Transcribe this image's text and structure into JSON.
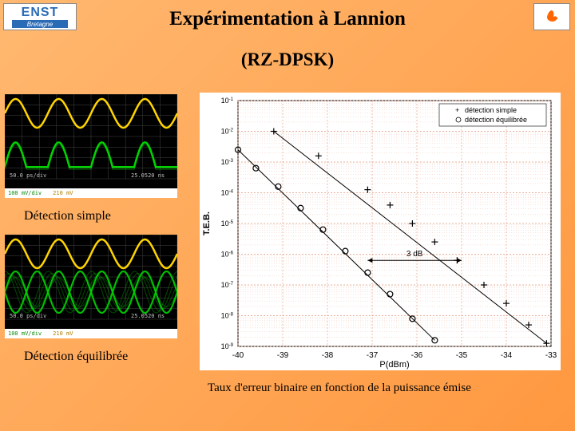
{
  "logos": {
    "left_line1": "ENST",
    "left_line2": "Bretagne",
    "right_symbol_color": "#ff6600"
  },
  "title": "Expérimentation à Lannion",
  "subtitle": "(RZ-DPSK)",
  "scope1": {
    "caption": "Détection simple",
    "timebase": "50.0 ps/div",
    "timestamp": "25.0520 ns",
    "ch2_scale": "100 mV/div",
    "ch2_offset": "210 mV",
    "traces": {
      "yellow": {
        "color": "#ffd400",
        "periods": 4,
        "amplitude": 18,
        "offset": 24,
        "type": "sine"
      },
      "green": {
        "color": "#00d400",
        "periods": 4,
        "amplitude": 22,
        "offset": 78,
        "type": "eye_single"
      }
    }
  },
  "scope2": {
    "caption": "Détection équilibrée",
    "timebase": "50.0 ps/div",
    "timestamp": "25.0520 ns",
    "ch2_scale": "100 mV/div",
    "ch2_offset": "210 mV",
    "traces": {
      "yellow": {
        "color": "#ffd400",
        "periods": 4,
        "amplitude": 18,
        "offset": 24,
        "type": "sine"
      },
      "green": {
        "color": "#00d400",
        "periods": 4,
        "amplitude": 26,
        "offset": 72,
        "type": "eye_double"
      }
    }
  },
  "teb": {
    "caption": "Taux d'erreur binaire en fonction de la puissance émise",
    "ylabel": "T.E.B.",
    "xlabel": "P(dBm)",
    "xlim": [
      -40,
      -33
    ],
    "xticks": [
      -40,
      -39,
      -38,
      -37,
      -36,
      -35,
      -34,
      -33
    ],
    "ylim_exp": [
      -9,
      -1
    ],
    "yticks_exp": [
      -1,
      -2,
      -3,
      -4,
      -5,
      -6,
      -7,
      -8,
      -9
    ],
    "grid_color": "#e4967a",
    "axis_color": "#000000",
    "background": "#ffffff",
    "legend": [
      {
        "marker": "plus",
        "label": "détection simple"
      },
      {
        "marker": "circle",
        "label": "détection équilibrée"
      }
    ],
    "series": {
      "simple": {
        "marker": "plus",
        "color": "#000000",
        "points": [
          [
            -39.2,
            -2.0
          ],
          [
            -38.2,
            -2.8
          ],
          [
            -37.1,
            -3.9
          ],
          [
            -36.6,
            -4.4
          ],
          [
            -36.1,
            -5.0
          ],
          [
            -35.6,
            -5.6
          ],
          [
            -35.1,
            -6.2
          ],
          [
            -34.5,
            -7.0
          ],
          [
            -34.0,
            -7.6
          ],
          [
            -33.5,
            -8.3
          ],
          [
            -33.1,
            -8.9
          ]
        ]
      },
      "balanced": {
        "marker": "circle",
        "color": "#000000",
        "points": [
          [
            -40.0,
            -2.6
          ],
          [
            -39.6,
            -3.2
          ],
          [
            -39.1,
            -3.8
          ],
          [
            -38.6,
            -4.5
          ],
          [
            -38.1,
            -5.2
          ],
          [
            -37.6,
            -5.9
          ],
          [
            -37.1,
            -6.6
          ],
          [
            -36.6,
            -7.3
          ],
          [
            -36.1,
            -8.1
          ],
          [
            -35.6,
            -8.8
          ]
        ]
      }
    },
    "annotation": {
      "text": "3 dB",
      "y_exp": -6.2,
      "arrow_from_x": -37.1,
      "arrow_to_x": -35.0
    }
  }
}
